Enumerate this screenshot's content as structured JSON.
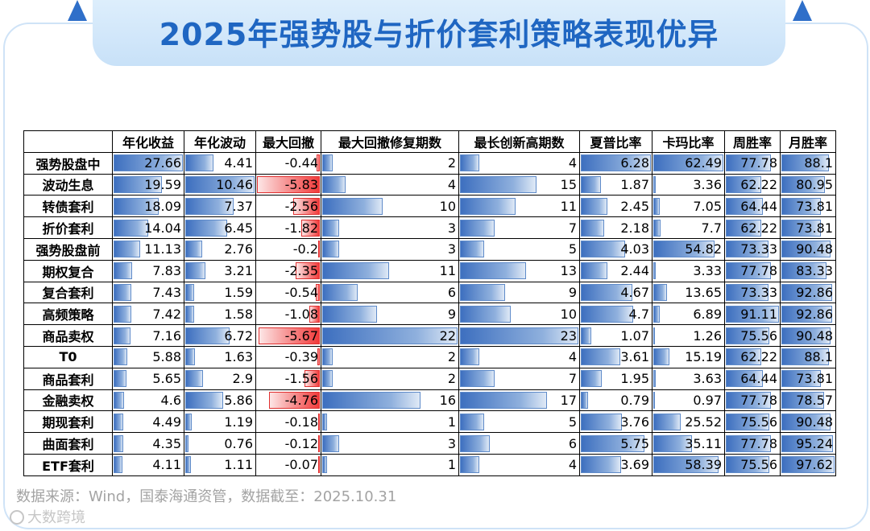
{
  "title": "2025年强势股与折价套利策略表现优异",
  "source": "数据来源：Wind，国泰海通资管，数据截至：2025.10.31",
  "watermark": "大数跨境",
  "colors": {
    "title": "#1f66c2",
    "positive_bar": "#3d6fbf",
    "negative_bar": "#f23b3b",
    "frame": "#cfe3f7"
  },
  "chart_data": {
    "type": "table",
    "columns": [
      "",
      "年化收益",
      "年化波动",
      "最大回撤",
      "最大回撤修复期数",
      "最长创新高期数",
      "夏普比率",
      "卡玛比率",
      "周胜率",
      "月胜率"
    ],
    "column_max": [
      null,
      27.66,
      10.46,
      5.83,
      22,
      23,
      6.28,
      62.49,
      91.11,
      97.62
    ],
    "rows": [
      {
        "label": "强势股盘中",
        "values": [
          "27.66",
          "4.41",
          "-0.44",
          "2",
          "4",
          "6.28",
          "62.49",
          "77.78",
          "88.1"
        ]
      },
      {
        "label": "波动生息",
        "values": [
          "19.59",
          "10.46",
          "-5.83",
          "4",
          "15",
          "1.87",
          "3.36",
          "62.22",
          "80.95"
        ]
      },
      {
        "label": "转债套利",
        "values": [
          "18.09",
          "7.37",
          "-2.56",
          "10",
          "11",
          "2.45",
          "7.05",
          "64.44",
          "73.81"
        ]
      },
      {
        "label": "折价套利",
        "values": [
          "14.04",
          "6.45",
          "-1.82",
          "3",
          "7",
          "2.18",
          "7.7",
          "62.22",
          "73.81"
        ]
      },
      {
        "label": "强势股盘前",
        "values": [
          "11.13",
          "2.76",
          "-0.2",
          "3",
          "5",
          "4.03",
          "54.82",
          "73.33",
          "90.48"
        ]
      },
      {
        "label": "期权复合",
        "values": [
          "7.83",
          "3.21",
          "-2.35",
          "11",
          "13",
          "2.44",
          "3.33",
          "77.78",
          "83.33"
        ]
      },
      {
        "label": "复合套利",
        "values": [
          "7.43",
          "1.59",
          "-0.54",
          "6",
          "9",
          "4.67",
          "13.65",
          "73.33",
          "92.86"
        ]
      },
      {
        "label": "高频策略",
        "values": [
          "7.42",
          "1.58",
          "-1.08",
          "9",
          "10",
          "4.7",
          "6.89",
          "91.11",
          "92.86"
        ]
      },
      {
        "label": "商品卖权",
        "values": [
          "7.16",
          "6.72",
          "-5.67",
          "22",
          "23",
          "1.07",
          "1.26",
          "75.56",
          "90.48"
        ]
      },
      {
        "label": "T0",
        "values": [
          "5.88",
          "1.63",
          "-0.39",
          "2",
          "4",
          "3.61",
          "15.19",
          "62.22",
          "88.1"
        ]
      },
      {
        "label": "商品套利",
        "values": [
          "5.65",
          "2.9",
          "-1.56",
          "2",
          "7",
          "1.95",
          "3.63",
          "64.44",
          "73.81"
        ]
      },
      {
        "label": "金融卖权",
        "values": [
          "4.6",
          "5.86",
          "-4.76",
          "16",
          "17",
          "0.79",
          "0.97",
          "77.78",
          "78.57"
        ]
      },
      {
        "label": "期现套利",
        "values": [
          "4.49",
          "1.19",
          "-0.18",
          "1",
          "5",
          "3.76",
          "25.52",
          "75.56",
          "90.48"
        ]
      },
      {
        "label": "曲面套利",
        "values": [
          "4.35",
          "0.76",
          "-0.12",
          "3",
          "6",
          "5.75",
          "35.11",
          "77.78",
          "95.24"
        ]
      },
      {
        "label": "ETF套利",
        "values": [
          "4.11",
          "1.11",
          "-0.07",
          "1",
          "4",
          "3.69",
          "58.39",
          "75.56",
          "97.62"
        ]
      }
    ]
  }
}
